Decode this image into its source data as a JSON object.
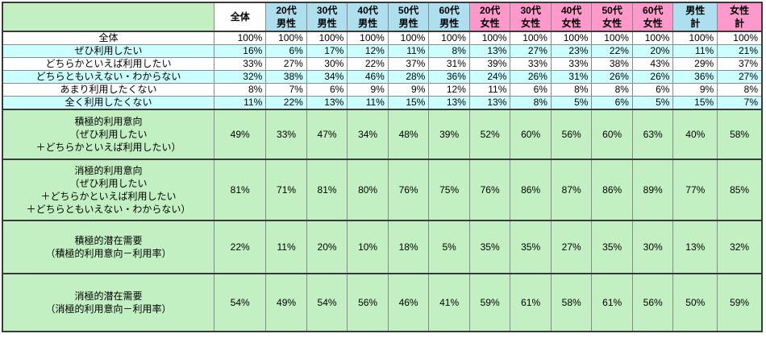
{
  "colors": {
    "summary_green": "#c3f0c3",
    "row_cyan": "#ccffff",
    "male_header_blue": "#aedfee",
    "female_header_pink": "#ff99cc",
    "gridline_gray": "#8a8a8a",
    "heavy_border": "#3a3a3a",
    "white": "#ffffff"
  },
  "chart_data": {
    "type": "table",
    "unit": "%",
    "title": "",
    "columns": [
      {
        "label": "全体",
        "display": "全体",
        "group": "total"
      },
      {
        "label": "20代男性",
        "display": "20代\n男性",
        "group": "male"
      },
      {
        "label": "30代男性",
        "display": "30代\n男性",
        "group": "male"
      },
      {
        "label": "40代男性",
        "display": "40代\n男性",
        "group": "male"
      },
      {
        "label": "50代男性",
        "display": "50代\n男性",
        "group": "male"
      },
      {
        "label": "60代男性",
        "display": "60代\n男性",
        "group": "male"
      },
      {
        "label": "20代女性",
        "display": "20代\n女性",
        "group": "female"
      },
      {
        "label": "30代女性",
        "display": "30代\n女性",
        "group": "female"
      },
      {
        "label": "40代女性",
        "display": "40代\n女性",
        "group": "female"
      },
      {
        "label": "50代女性",
        "display": "50代\n女性",
        "group": "female"
      },
      {
        "label": "60代女性",
        "display": "60代\n女性",
        "group": "female"
      },
      {
        "label": "男性計",
        "display": "男性\n計",
        "group": "male"
      },
      {
        "label": "女性計",
        "display": "女性\n計",
        "group": "female"
      }
    ],
    "rows": [
      {
        "label": "全体",
        "section": "detail",
        "values": [
          100,
          100,
          100,
          100,
          100,
          100,
          100,
          100,
          100,
          100,
          100,
          100,
          100
        ]
      },
      {
        "label": "ぜひ利用したい",
        "section": "detail",
        "values": [
          16,
          6,
          17,
          12,
          11,
          8,
          13,
          27,
          23,
          22,
          20,
          11,
          21
        ]
      },
      {
        "label": "どちらかといえば利用したい",
        "section": "detail",
        "values": [
          33,
          27,
          30,
          22,
          37,
          31,
          39,
          33,
          33,
          38,
          43,
          29,
          37
        ]
      },
      {
        "label": "どちらともいえない・わからない",
        "section": "detail",
        "values": [
          32,
          38,
          34,
          46,
          28,
          36,
          24,
          26,
          31,
          26,
          26,
          36,
          27
        ]
      },
      {
        "label": "あまり利用したくない",
        "section": "detail",
        "values": [
          8,
          7,
          6,
          9,
          9,
          12,
          11,
          6,
          8,
          8,
          6,
          9,
          8
        ]
      },
      {
        "label": "全く利用したくない",
        "section": "detail",
        "values": [
          11,
          22,
          13,
          11,
          15,
          13,
          13,
          8,
          5,
          6,
          5,
          15,
          7
        ]
      },
      {
        "label": "積極的利用意向（ぜひ利用したい＋どちらかといえば利用したい）",
        "display": "積極的利用意向\n（ぜひ利用したい\n＋どちらかといえば利用したい）",
        "section": "summary",
        "values": [
          49,
          33,
          47,
          34,
          48,
          39,
          52,
          60,
          56,
          60,
          63,
          40,
          58
        ]
      },
      {
        "label": "消極的利用意向（ぜひ利用したい＋どちらかといえば利用したい＋どちらともいえない・わからない）",
        "display": "消極的利用意向\n（ぜひ利用したい\n＋どちらかといえば利用したい\n＋どちらともいえない・わからない）",
        "section": "summary",
        "values": [
          81,
          71,
          81,
          80,
          76,
          75,
          76,
          86,
          87,
          86,
          89,
          77,
          85
        ]
      },
      {
        "label": "積極的潜在需要（積極的利用意向－利用率）",
        "display": "積極的潜在需要\n（積極的利用意向－利用率）",
        "section": "summary",
        "values": [
          22,
          11,
          20,
          10,
          18,
          5,
          35,
          35,
          27,
          35,
          30,
          13,
          32
        ]
      },
      {
        "label": "消極的潜在需要（消極的利用意向－利用率）",
        "display": "消極的潜在需要\n（消極的利用意向－利用率）",
        "section": "summary",
        "values": [
          54,
          49,
          54,
          56,
          46,
          41,
          59,
          61,
          58,
          61,
          56,
          50,
          59
        ]
      }
    ]
  }
}
